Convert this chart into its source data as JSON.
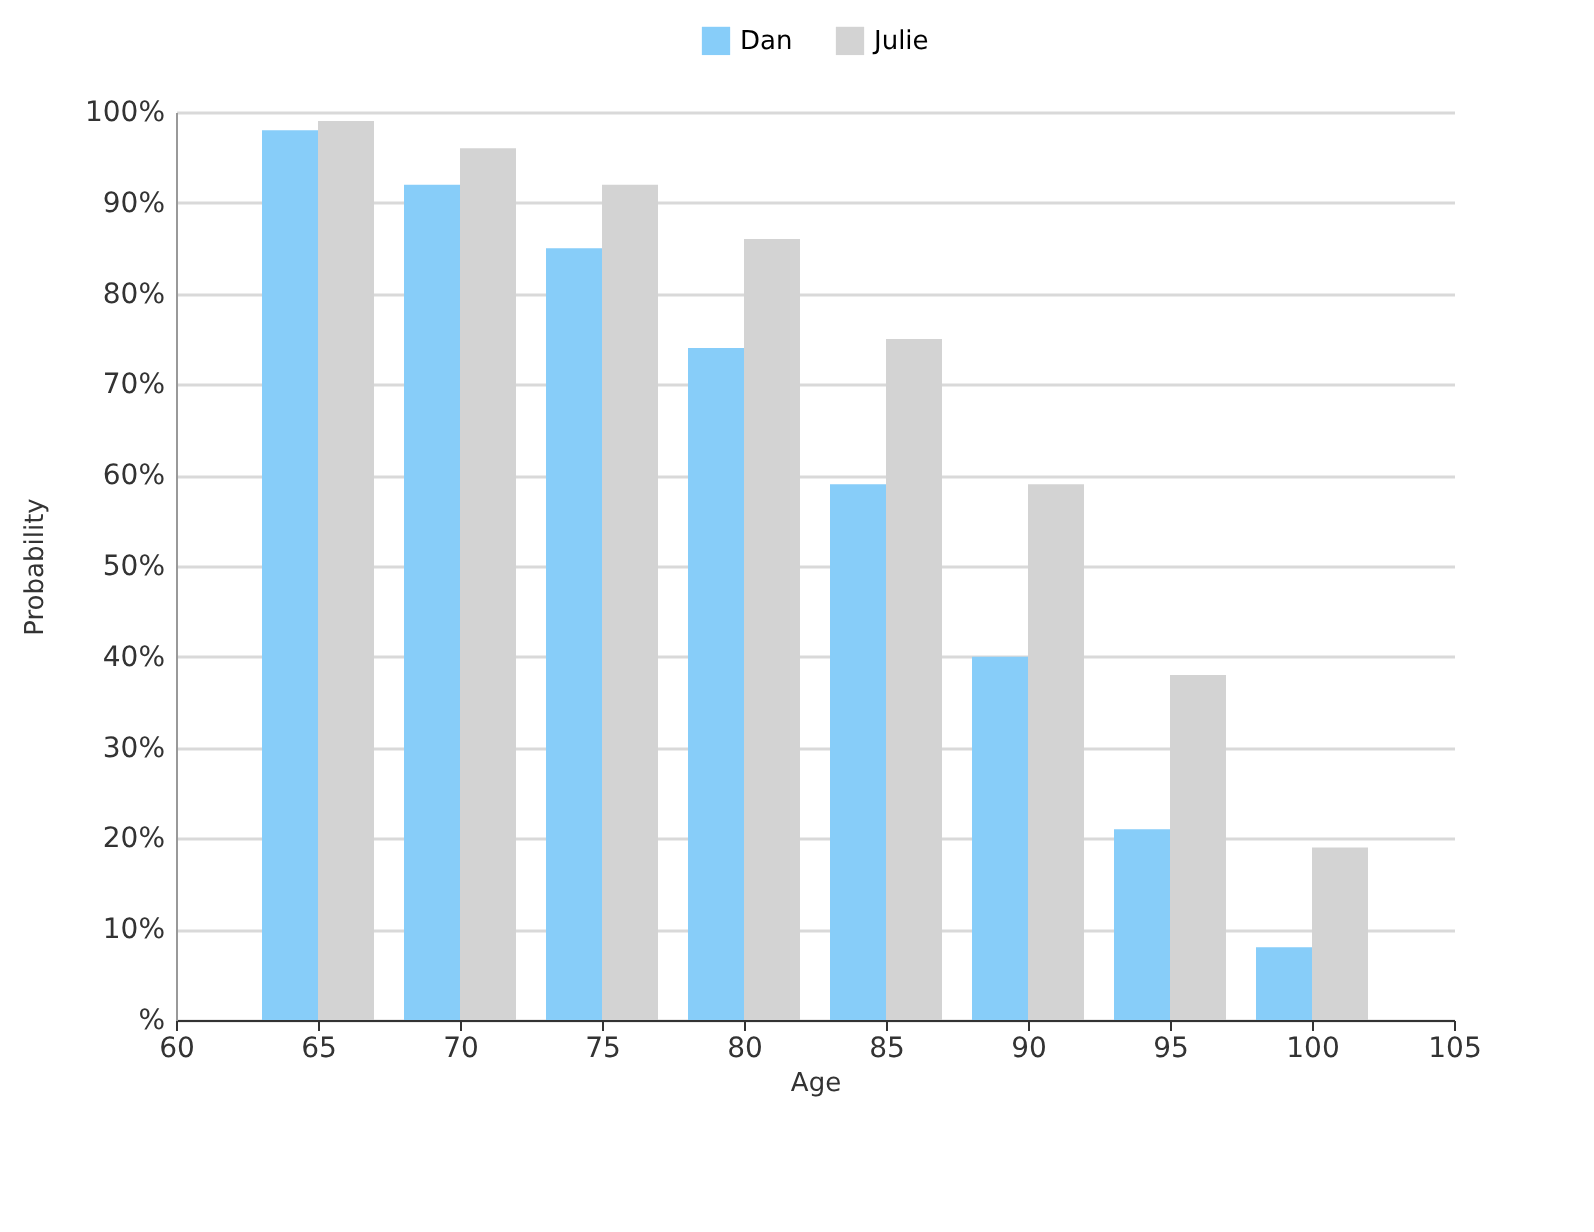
{
  "chart_data": {
    "type": "bar",
    "xlabel": "Age",
    "ylabel": "Probability",
    "x": [
      65,
      70,
      75,
      80,
      85,
      90,
      95,
      100
    ],
    "series": [
      {
        "name": "Dan",
        "color": "#87cdf9",
        "values": [
          98,
          92,
          85,
          74,
          59,
          40,
          21,
          8
        ]
      },
      {
        "name": "Julie",
        "color": "#d3d3d3",
        "values": [
          99,
          96,
          92,
          86,
          75,
          59,
          38,
          19
        ]
      }
    ],
    "xlim": [
      60,
      105
    ],
    "xticks": [
      60,
      65,
      70,
      75,
      80,
      85,
      90,
      95,
      100,
      105
    ],
    "ylim": [
      0,
      100
    ],
    "yticks": [
      {
        "value": 0,
        "label": "%"
      },
      {
        "value": 10,
        "label": "10%"
      },
      {
        "value": 20,
        "label": "20%"
      },
      {
        "value": 30,
        "label": "30%"
      },
      {
        "value": 40,
        "label": "40%"
      },
      {
        "value": 50,
        "label": "50%"
      },
      {
        "value": 60,
        "label": "60%"
      },
      {
        "value": 70,
        "label": "70%"
      },
      {
        "value": 80,
        "label": "80%"
      },
      {
        "value": 90,
        "label": "90%"
      },
      {
        "value": 100,
        "label": "100%"
      }
    ],
    "grid": "y",
    "legend": "top"
  }
}
